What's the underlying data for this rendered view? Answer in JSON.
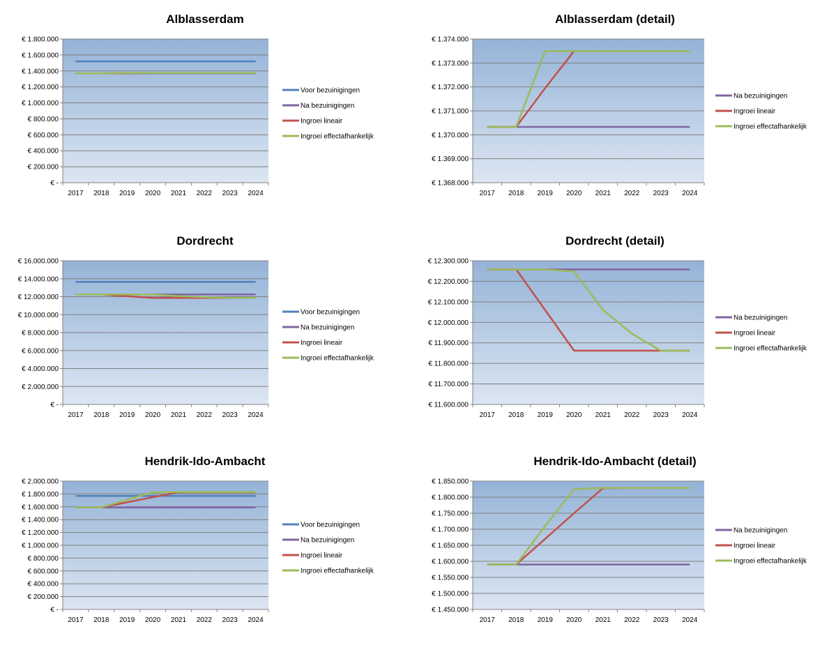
{
  "colors": {
    "voor": "#4f81bd",
    "na": "#8064a2",
    "lineair": "#c0504d",
    "effect": "#9bbb59",
    "plot_top": "#95b3d7",
    "plot_bottom": "#dce6f2",
    "grid": "#7f7f7f"
  },
  "chart_data": [
    {
      "type": "line",
      "title": "Alblasserdam",
      "x": [
        "2017",
        "2018",
        "2019",
        "2020",
        "2021",
        "2022",
        "2023",
        "2024"
      ],
      "ylim": [
        0,
        1800000
      ],
      "yticks": [
        "€ 1.800.000",
        "€ 1.600.000",
        "€ 1.400.000",
        "€ 1.200.000",
        "€ 1.000.000",
        "€ 800.000",
        "€ 600.000",
        "€ 400.000",
        "€ 200.000",
        "€ -"
      ],
      "series": [
        {
          "name": "Voor bezuinigingen",
          "color": "#4f81bd",
          "values": [
            1520000,
            1520000,
            1520000,
            1520000,
            1520000,
            1520000,
            1520000,
            1520000
          ]
        },
        {
          "name": "Na bezuinigingen",
          "color": "#8064a2",
          "values": [
            1370300,
            1370300,
            1370300,
            1370300,
            1370300,
            1370300,
            1370300,
            1370300
          ]
        },
        {
          "name": "Ingroei lineair",
          "color": "#c0504d",
          "values": [
            1370300,
            1370300,
            1371900,
            1373500,
            1373500,
            1373500,
            1373500,
            1373500
          ]
        },
        {
          "name": "Ingroei effectafhankelijk",
          "color": "#9bbb59",
          "values": [
            1370300,
            1370300,
            1373500,
            1373500,
            1373500,
            1373500,
            1373500,
            1373500
          ]
        }
      ],
      "legend_position": "right"
    },
    {
      "type": "line",
      "title": "Alblasserdam (detail)",
      "x": [
        "2017",
        "2018",
        "2019",
        "2020",
        "2021",
        "2022",
        "2023",
        "2024"
      ],
      "ylim": [
        1368000,
        1374000
      ],
      "yticks": [
        "€ 1.374.000",
        "€ 1.373.000",
        "€ 1.372.000",
        "€ 1.371.000",
        "€ 1.370.000",
        "€ 1.369.000",
        "€ 1.368.000"
      ],
      "series": [
        {
          "name": "Na bezuinigingen",
          "color": "#8064a2",
          "values": [
            1370330,
            1370330,
            1370330,
            1370330,
            1370330,
            1370330,
            1370330,
            1370330
          ]
        },
        {
          "name": "Ingroei lineair",
          "color": "#c0504d",
          "values": [
            1370330,
            1370330,
            1371950,
            1373500,
            1373500,
            1373500,
            1373500,
            1373500
          ]
        },
        {
          "name": "Ingroei effectafhankelijk",
          "color": "#9bbb59",
          "values": [
            1370330,
            1370330,
            1373500,
            1373500,
            1373500,
            1373500,
            1373500,
            1373500
          ]
        }
      ],
      "legend_position": "right"
    },
    {
      "type": "line",
      "title": "Dordrecht",
      "x": [
        "2017",
        "2018",
        "2019",
        "2020",
        "2021",
        "2022",
        "2023",
        "2024"
      ],
      "ylim": [
        0,
        16000000
      ],
      "yticks": [
        "€ 16.000.000",
        "€ 14.000.000",
        "€ 12.000.000",
        "€ 10.000.000",
        "€ 8.000.000",
        "€ 6.000.000",
        "€ 4.000.000",
        "€ 2.000.000",
        "€ -"
      ],
      "series": [
        {
          "name": "Voor bezuinigingen",
          "color": "#4f81bd",
          "values": [
            13650000,
            13650000,
            13650000,
            13650000,
            13650000,
            13650000,
            13650000,
            13650000
          ]
        },
        {
          "name": "Na bezuinigingen",
          "color": "#8064a2",
          "values": [
            12260000,
            12260000,
            12260000,
            12260000,
            12260000,
            12260000,
            12260000,
            12260000
          ]
        },
        {
          "name": "Ingroei lineair",
          "color": "#c0504d",
          "values": [
            12260000,
            12260000,
            12060000,
            11860000,
            11860000,
            11860000,
            11860000,
            11860000
          ]
        },
        {
          "name": "Ingroei effectafhankelijk",
          "color": "#9bbb59",
          "values": [
            12260000,
            12260000,
            12260000,
            12250000,
            12060000,
            11950000,
            11860000,
            11860000
          ]
        }
      ],
      "legend_position": "right"
    },
    {
      "type": "line",
      "title": "Dordrecht (detail)",
      "x": [
        "2017",
        "2018",
        "2019",
        "2020",
        "2021",
        "2022",
        "2023",
        "2024"
      ],
      "ylim": [
        11600000,
        12300000
      ],
      "yticks": [
        "€ 12.300.000",
        "€ 12.200.000",
        "€ 12.100.000",
        "€ 12.000.000",
        "€ 11.900.000",
        "€ 11.800.000",
        "€ 11.700.000",
        "€ 11.600.000"
      ],
      "series": [
        {
          "name": "Na bezuinigingen",
          "color": "#8064a2",
          "values": [
            12258000,
            12258000,
            12258000,
            12258000,
            12258000,
            12258000,
            12258000,
            12258000
          ]
        },
        {
          "name": "Ingroei lineair",
          "color": "#c0504d",
          "values": [
            12258000,
            12258000,
            12060000,
            11862000,
            11862000,
            11862000,
            11862000,
            11862000
          ]
        },
        {
          "name": "Ingroei effectafhankelijk",
          "color": "#9bbb59",
          "values": [
            12258000,
            12258000,
            12258000,
            12248000,
            12060000,
            11945000,
            11862000,
            11862000
          ]
        }
      ],
      "legend_position": "right"
    },
    {
      "type": "line",
      "title": "Hendrik-Ido-Ambacht",
      "x": [
        "2017",
        "2018",
        "2019",
        "2020",
        "2021",
        "2022",
        "2023",
        "2024"
      ],
      "ylim": [
        0,
        2000000
      ],
      "yticks": [
        "€ 2.000.000",
        "€ 1.800.000",
        "€ 1.600.000",
        "€ 1.400.000",
        "€ 1.200.000",
        "€ 1.000.000",
        "€ 800.000",
        "€ 600.000",
        "€ 400.000",
        "€ 200.000",
        "€ -"
      ],
      "series": [
        {
          "name": "Voor bezuinigingen",
          "color": "#4f81bd",
          "values": [
            1770000,
            1770000,
            1770000,
            1770000,
            1770000,
            1770000,
            1770000,
            1770000
          ]
        },
        {
          "name": "Na bezuinigingen",
          "color": "#8064a2",
          "values": [
            1590000,
            1590000,
            1590000,
            1590000,
            1590000,
            1590000,
            1590000,
            1590000
          ]
        },
        {
          "name": "Ingroei lineair",
          "color": "#c0504d",
          "values": [
            1590000,
            1590000,
            1670000,
            1750000,
            1825000,
            1825000,
            1825000,
            1825000
          ]
        },
        {
          "name": "Ingroei effectafhankelijk",
          "color": "#9bbb59",
          "values": [
            1590000,
            1590000,
            1710000,
            1825000,
            1830000,
            1830000,
            1830000,
            1830000
          ]
        }
      ],
      "legend_position": "right"
    },
    {
      "type": "line",
      "title": "Hendrik-Ido-Ambacht (detail)",
      "x": [
        "2017",
        "2018",
        "2019",
        "2020",
        "2021",
        "2022",
        "2023",
        "2024"
      ],
      "ylim": [
        1450000,
        1850000
      ],
      "yticks": [
        "€ 1.850.000",
        "€ 1.800.000",
        "€ 1.750.000",
        "€ 1.700.000",
        "€ 1.650.000",
        "€ 1.600.000",
        "€ 1.550.000",
        "€ 1.500.000",
        "€ 1.450.000"
      ],
      "series": [
        {
          "name": "Na bezuinigingen",
          "color": "#8064a2",
          "values": [
            1590000,
            1590000,
            1590000,
            1590000,
            1590000,
            1590000,
            1590000,
            1590000
          ]
        },
        {
          "name": "Ingroei lineair",
          "color": "#c0504d",
          "values": [
            1590000,
            1590000,
            1670000,
            1750000,
            1828000,
            1829000,
            1829000,
            1829000
          ]
        },
        {
          "name": "Ingroei effectafhankelijk",
          "color": "#9bbb59",
          "values": [
            1590000,
            1590000,
            1710000,
            1825000,
            1829000,
            1829000,
            1829000,
            1829000
          ]
        }
      ],
      "legend_position": "right"
    }
  ]
}
